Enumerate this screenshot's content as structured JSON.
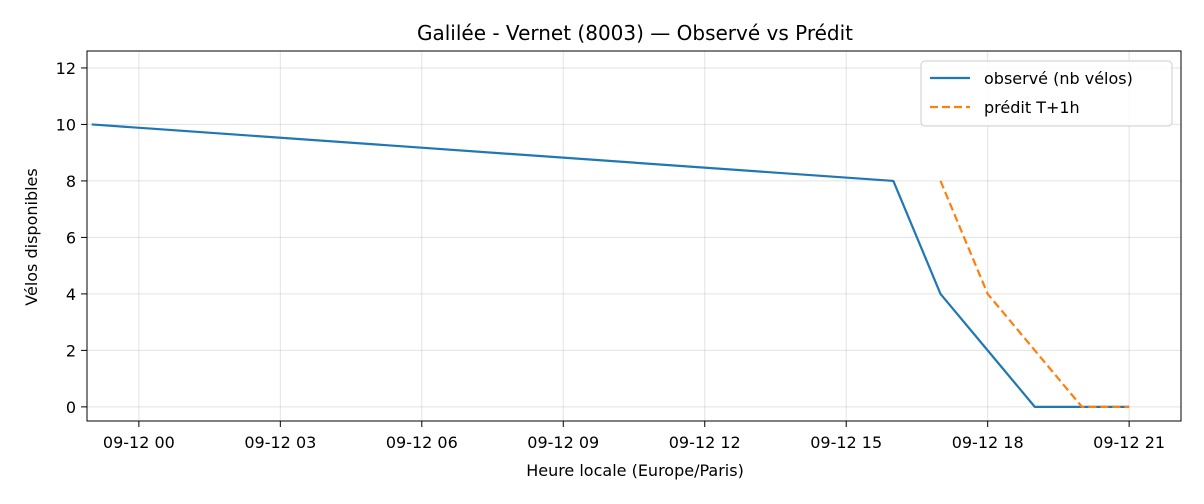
{
  "chart_data": {
    "type": "line",
    "title": "Galilée - Vernet (8003) — Observé vs Prédit",
    "xlabel": "Heure locale (Europe/Paris)",
    "ylabel": "Vélos disponibles",
    "x_unit": "hour",
    "x_tick_values": [
      0,
      3,
      6,
      9,
      12,
      15,
      18,
      21
    ],
    "x_tick_labels": [
      "09-12 00",
      "09-12 03",
      "09-12 06",
      "09-12 09",
      "09-12 12",
      "09-12 15",
      "09-12 18",
      "09-12 21"
    ],
    "xlim": [
      -1.1,
      22.1
    ],
    "y_ticks": [
      0,
      2,
      4,
      6,
      8,
      10,
      12
    ],
    "ylim": [
      -0.5,
      12.6
    ],
    "grid": true,
    "legend_position": "top-right",
    "series": [
      {
        "name": "observé (nb vélos)",
        "color": "#1f77b4",
        "style": "solid",
        "x": [
          -1,
          16,
          17,
          18,
          19,
          20,
          21
        ],
        "y": [
          10,
          8,
          4,
          2,
          0,
          0,
          0
        ]
      },
      {
        "name": "prédit T+1h",
        "color": "#ff7f0e",
        "style": "dashed",
        "x": [
          17,
          18,
          19,
          20,
          21
        ],
        "y": [
          8,
          4,
          2,
          0,
          0
        ]
      }
    ]
  }
}
